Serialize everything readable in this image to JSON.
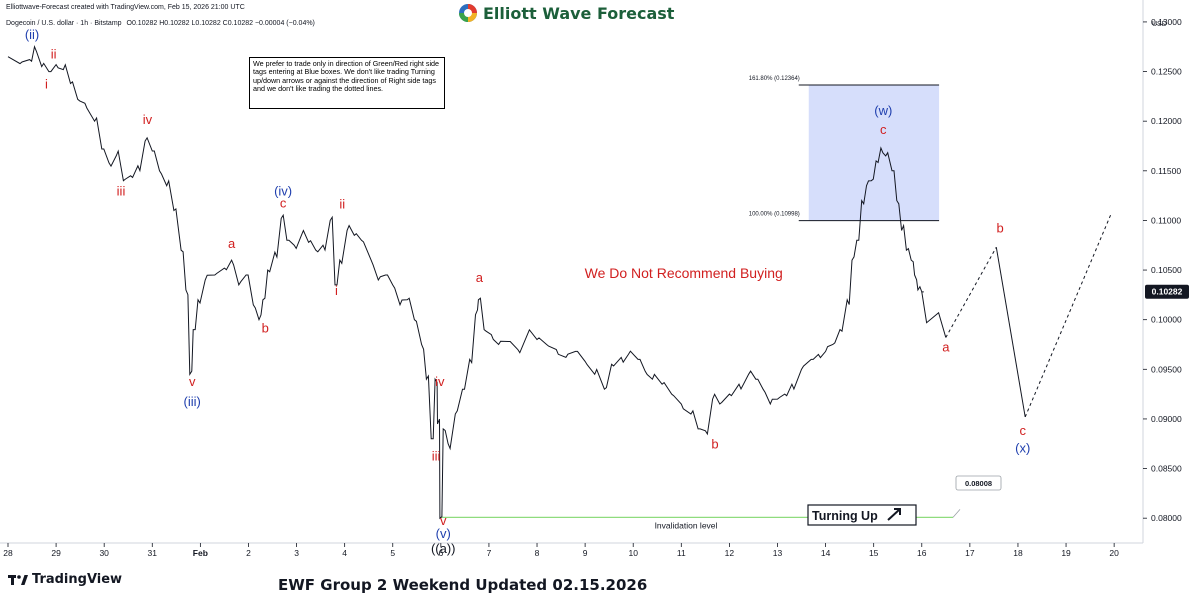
{
  "header": {
    "credit": "Elliottwave-Forecast created with TradingView.com, Feb 15, 2026 21:00 UTC",
    "symbol": "Dogecoin / U.S. dollar · 1h · Bitstamp",
    "ohlc": "O0.10282 H0.10282 L0.10282 C0.10282 −0.00004 (−0.04%)"
  },
  "brand": {
    "name": "Elliott Wave Forecast",
    "icon": "ewf-logo-icon"
  },
  "tradingview": {
    "name": "TradingView",
    "icon": "tradingview-logo-icon"
  },
  "footer": {
    "title": "EWF Group 2 Weekend Updated 02.15.2026"
  },
  "notice": "We prefer to trade only in direction of Green/Red right side tags entering at Blue boxes. We don't like trading Turning up/down arrows or against the direction of Right side tags and we don't like trading the dotted lines.",
  "chart_data": {
    "type": "line",
    "currency": "USD",
    "ylim": [
      0.0775,
      0.131
    ],
    "xlim": [
      0.0,
      23.6
    ],
    "x_ticks": [
      {
        "x": 0.0,
        "label": "28"
      },
      {
        "x": 1.0,
        "label": "29"
      },
      {
        "x": 2.0,
        "label": "30"
      },
      {
        "x": 3.0,
        "label": "31"
      },
      {
        "x": 4.0,
        "label": "Feb"
      },
      {
        "x": 5.0,
        "label": "2"
      },
      {
        "x": 6.0,
        "label": "3"
      },
      {
        "x": 7.0,
        "label": "4"
      },
      {
        "x": 8.0,
        "label": "5"
      },
      {
        "x": 9.0,
        "label": "6"
      },
      {
        "x": 10.0,
        "label": "7"
      },
      {
        "x": 11.0,
        "label": "8"
      },
      {
        "x": 12.0,
        "label": "9"
      },
      {
        "x": 13.0,
        "label": "10"
      },
      {
        "x": 14.0,
        "label": "11"
      },
      {
        "x": 15.0,
        "label": "12"
      },
      {
        "x": 16.0,
        "label": "13"
      },
      {
        "x": 17.0,
        "label": "14"
      },
      {
        "x": 18.0,
        "label": "15"
      },
      {
        "x": 19.0,
        "label": "16"
      },
      {
        "x": 20.0,
        "label": "17"
      },
      {
        "x": 21.0,
        "label": "18"
      },
      {
        "x": 22.0,
        "label": "19"
      },
      {
        "x": 23.0,
        "label": "20"
      }
    ],
    "y_ticks": [
      "0.08000",
      "0.08500",
      "0.09000",
      "0.09500",
      "0.10000",
      "0.10500",
      "0.11000",
      "0.11500",
      "0.12000",
      "0.12500",
      "0.13000"
    ],
    "current_price": "0.10282",
    "price_series": [
      [
        0.0,
        0.1265
      ],
      [
        0.25,
        0.1258
      ],
      [
        0.45,
        0.1262
      ],
      [
        0.55,
        0.1275
      ],
      [
        0.7,
        0.1255
      ],
      [
        0.85,
        0.125
      ],
      [
        1.0,
        0.1257
      ],
      [
        1.15,
        0.1252
      ],
      [
        1.3,
        0.1238
      ],
      [
        1.45,
        0.1222
      ],
      [
        1.6,
        0.1218
      ],
      [
        1.8,
        0.12
      ],
      [
        1.95,
        0.1172
      ],
      [
        2.1,
        0.1158
      ],
      [
        2.25,
        0.1165
      ],
      [
        2.4,
        0.114
      ],
      [
        2.55,
        0.1145
      ],
      [
        2.7,
        0.1155
      ],
      [
        2.85,
        0.118
      ],
      [
        3.0,
        0.117
      ],
      [
        3.15,
        0.115
      ],
      [
        3.3,
        0.1135
      ],
      [
        3.45,
        0.111
      ],
      [
        3.6,
        0.107
      ],
      [
        3.7,
        0.103
      ],
      [
        3.78,
        0.0945
      ],
      [
        3.85,
        0.099
      ],
      [
        3.95,
        0.102
      ],
      [
        4.1,
        0.104
      ],
      [
        4.3,
        0.1045
      ],
      [
        4.5,
        0.1052
      ],
      [
        4.65,
        0.106
      ],
      [
        4.8,
        0.1035
      ],
      [
        4.95,
        0.1045
      ],
      [
        5.1,
        0.1015
      ],
      [
        5.22,
        0.1
      ],
      [
        5.3,
        0.102
      ],
      [
        5.4,
        0.105
      ],
      [
        5.55,
        0.1068
      ],
      [
        5.68,
        0.1102
      ],
      [
        5.8,
        0.108
      ],
      [
        5.95,
        0.1075
      ],
      [
        6.1,
        0.1085
      ],
      [
        6.25,
        0.1078
      ],
      [
        6.4,
        0.107
      ],
      [
        6.55,
        0.1075
      ],
      [
        6.7,
        0.11
      ],
      [
        6.8,
        0.1035
      ],
      [
        6.9,
        0.106
      ],
      [
        7.05,
        0.109
      ],
      [
        7.2,
        0.1085
      ],
      [
        7.35,
        0.108
      ],
      [
        7.55,
        0.106
      ],
      [
        7.7,
        0.104
      ],
      [
        7.85,
        0.1045
      ],
      [
        8.0,
        0.1035
      ],
      [
        8.15,
        0.1015
      ],
      [
        8.3,
        0.102
      ],
      [
        8.45,
        0.1
      ],
      [
        8.6,
        0.0975
      ],
      [
        8.7,
        0.094
      ],
      [
        8.8,
        0.088
      ],
      [
        8.88,
        0.094
      ],
      [
        8.93,
        0.0895
      ],
      [
        8.98,
        0.08
      ],
      [
        9.05,
        0.089
      ],
      [
        9.15,
        0.0875
      ],
      [
        9.3,
        0.0905
      ],
      [
        9.45,
        0.093
      ],
      [
        9.6,
        0.096
      ],
      [
        9.72,
        0.1005
      ],
      [
        9.78,
        0.102
      ],
      [
        9.9,
        0.099
      ],
      [
        10.05,
        0.0985
      ],
      [
        10.2,
        0.0975
      ],
      [
        10.4,
        0.0978
      ],
      [
        10.6,
        0.097
      ],
      [
        10.8,
        0.0985
      ],
      [
        11.0,
        0.098
      ],
      [
        11.2,
        0.0975
      ],
      [
        11.4,
        0.097
      ],
      [
        11.6,
        0.0962
      ],
      [
        11.8,
        0.0968
      ],
      [
        12.0,
        0.0958
      ],
      [
        12.2,
        0.0945
      ],
      [
        12.4,
        0.093
      ],
      [
        12.55,
        0.0955
      ],
      [
        12.75,
        0.0962
      ],
      [
        12.9,
        0.0965
      ],
      [
        13.1,
        0.096
      ],
      [
        13.25,
        0.0948
      ],
      [
        13.4,
        0.094
      ],
      [
        13.6,
        0.0935
      ],
      [
        13.8,
        0.0925
      ],
      [
        14.0,
        0.0915
      ],
      [
        14.2,
        0.0905
      ],
      [
        14.35,
        0.089
      ],
      [
        14.5,
        0.0888
      ],
      [
        14.65,
        0.092
      ],
      [
        14.8,
        0.0915
      ],
      [
        15.0,
        0.0925
      ],
      [
        15.2,
        0.0935
      ],
      [
        15.4,
        0.0945
      ],
      [
        15.55,
        0.094
      ],
      [
        15.7,
        0.093
      ],
      [
        15.85,
        0.0915
      ],
      [
        16.0,
        0.092
      ],
      [
        16.15,
        0.0925
      ],
      [
        16.3,
        0.0935
      ],
      [
        16.5,
        0.095
      ],
      [
        16.7,
        0.096
      ],
      [
        16.85,
        0.0965
      ],
      [
        17.0,
        0.0968
      ],
      [
        17.15,
        0.0975
      ],
      [
        17.3,
        0.099
      ],
      [
        17.45,
        0.102
      ],
      [
        17.55,
        0.106
      ],
      [
        17.65,
        0.108
      ],
      [
        17.75,
        0.112
      ],
      [
        17.85,
        0.1135
      ],
      [
        17.95,
        0.114
      ],
      [
        18.05,
        0.116
      ],
      [
        18.15,
        0.1173
      ],
      [
        18.25,
        0.1165
      ],
      [
        18.38,
        0.115
      ],
      [
        18.48,
        0.112
      ],
      [
        18.58,
        0.109
      ],
      [
        18.68,
        0.107
      ],
      [
        18.78,
        0.106
      ],
      [
        18.85,
        0.1045
      ],
      [
        18.92,
        0.103
      ],
      [
        19.0,
        0.1028
      ]
    ],
    "projection_solid": [
      [
        19.0,
        0.1028
      ],
      [
        19.1,
        0.0997
      ],
      [
        19.35,
        0.1007
      ],
      [
        19.5,
        0.0982
      ]
    ],
    "projection_dotted": [
      [
        19.5,
        0.0982
      ],
      [
        20.55,
        0.1073
      ]
    ],
    "projection_solid_2": [
      [
        20.55,
        0.1073
      ],
      [
        21.15,
        0.0902
      ]
    ],
    "projection_dotted_2": [
      [
        21.15,
        0.0902
      ],
      [
        22.95,
        0.1108
      ]
    ],
    "blue_box": {
      "x0": 16.65,
      "x1": 19.36,
      "y0": 0.10998,
      "y1": 0.12364
    },
    "fib_levels": [
      {
        "value": 0.12364,
        "label": "161.80% (0.12364)"
      },
      {
        "value": 0.10998,
        "label": "100.00% (0.10998)"
      }
    ],
    "invalidation": {
      "value": 0.08008,
      "label": "0.08008",
      "text": "Invalidation level",
      "x0": 9.0,
      "x1": 19.5
    },
    "annotations": [
      {
        "x": 0.5,
        "y": 0.1283,
        "text": "(ii)",
        "color": "#1f3fae"
      },
      {
        "x": 0.95,
        "y": 0.1263,
        "text": "ii",
        "color": "#d11f1f"
      },
      {
        "x": 0.8,
        "y": 0.1233,
        "text": "i",
        "color": "#d11f1f"
      },
      {
        "x": 2.9,
        "y": 0.1197,
        "text": "iv",
        "color": "#d11f1f"
      },
      {
        "x": 2.35,
        "y": 0.1125,
        "text": "iii",
        "color": "#d11f1f"
      },
      {
        "x": 5.72,
        "y": 0.1113,
        "text": "c",
        "color": "#d11f1f"
      },
      {
        "x": 5.72,
        "y": 0.1125,
        "text": "(iv)",
        "color": "#1f3fae"
      },
      {
        "x": 4.65,
        "y": 0.1072,
        "text": "a",
        "color": "#d11f1f"
      },
      {
        "x": 5.35,
        "y": 0.0987,
        "text": "b",
        "color": "#d11f1f"
      },
      {
        "x": 6.95,
        "y": 0.1112,
        "text": "ii",
        "color": "#d11f1f"
      },
      {
        "x": 6.83,
        "y": 0.1025,
        "text": "i",
        "color": "#d11f1f"
      },
      {
        "x": 3.83,
        "y": 0.0933,
        "text": "v",
        "color": "#d11f1f"
      },
      {
        "x": 3.83,
        "y": 0.0913,
        "text": "(iii)",
        "color": "#1f3fae"
      },
      {
        "x": 8.98,
        "y": 0.0933,
        "text": "iv",
        "color": "#d11f1f"
      },
      {
        "x": 8.9,
        "y": 0.0858,
        "text": "iii",
        "color": "#d11f1f"
      },
      {
        "x": 9.05,
        "y": 0.0793,
        "text": "v",
        "color": "#d11f1f"
      },
      {
        "x": 9.05,
        "y": 0.078,
        "text": "(v)",
        "color": "#1f3fae"
      },
      {
        "x": 9.05,
        "y": 0.0765,
        "text": "((a))",
        "color": "#131722"
      },
      {
        "x": 9.8,
        "y": 0.1038,
        "text": "a",
        "color": "#d11f1f"
      },
      {
        "x": 14.7,
        "y": 0.087,
        "text": "b",
        "color": "#d11f1f"
      },
      {
        "x": 18.2,
        "y": 0.1206,
        "text": "(w)",
        "color": "#1f3fae"
      },
      {
        "x": 18.2,
        "y": 0.1187,
        "text": "c",
        "color": "#d11f1f"
      },
      {
        "x": 19.5,
        "y": 0.0968,
        "text": "a",
        "color": "#d11f1f"
      },
      {
        "x": 20.63,
        "y": 0.1088,
        "text": "b",
        "color": "#d11f1f"
      },
      {
        "x": 21.1,
        "y": 0.0884,
        "text": "c",
        "color": "#d11f1f"
      },
      {
        "x": 21.1,
        "y": 0.0866,
        "text": "(x)",
        "color": "#1f3fae"
      }
    ],
    "center_text": {
      "text": "We Do Not Recommend Buying",
      "x": 14.05,
      "y": 0.1042,
      "color": "#d11f1f"
    },
    "turning_up": {
      "text": "Turning Up",
      "arrow_icon": "arrow-up-right-icon"
    },
    "colors": {
      "up": "#131722",
      "box": "#d6defb",
      "invalidation": "#8fdc7e",
      "price_tag": "#131722"
    }
  }
}
